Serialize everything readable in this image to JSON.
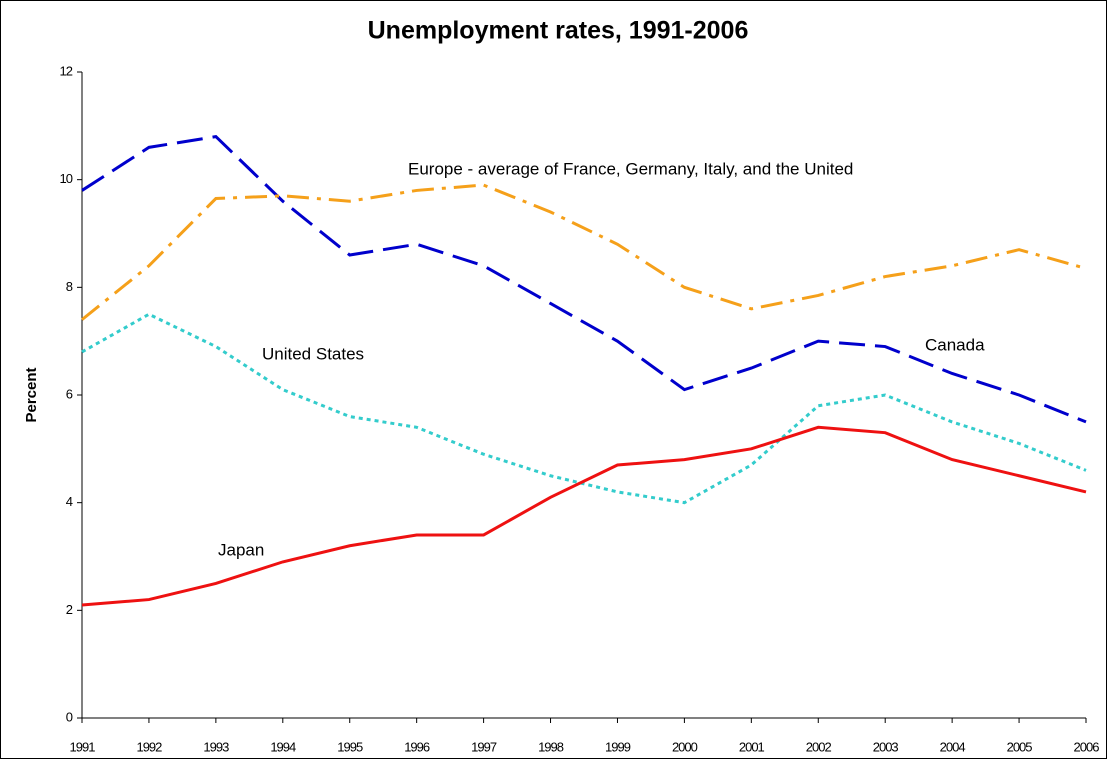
{
  "chart_data": {
    "type": "line",
    "title": "Unemployment rates, 1991-2006",
    "y_label": "Percent",
    "categories": [
      "1991",
      "1992",
      "1993",
      "1994",
      "1995",
      "1996",
      "1997",
      "1998",
      "1999",
      "2000",
      "2001",
      "2002",
      "2003",
      "2004",
      "2005",
      "2006"
    ],
    "series": [
      {
        "name": "Canada",
        "color": "#0000cc",
        "dash": "dashed",
        "values": [
          9.8,
          10.6,
          10.8,
          9.6,
          8.6,
          8.8,
          8.4,
          7.7,
          7.0,
          6.1,
          6.5,
          7.0,
          6.9,
          6.4,
          6.0,
          5.5
        ]
      },
      {
        "name": "Europe - average of France, Germany, Italy, and the United",
        "color": "#f5a01a",
        "dash": "dashdot",
        "values": [
          7.4,
          8.4,
          9.65,
          9.7,
          9.6,
          9.8,
          9.9,
          9.4,
          8.8,
          8.0,
          7.6,
          7.85,
          8.2,
          8.4,
          8.7,
          8.35
        ]
      },
      {
        "name": "United States",
        "color": "#33cccc",
        "dash": "dotted",
        "values": [
          6.8,
          7.5,
          6.9,
          6.1,
          5.6,
          5.4,
          4.9,
          4.5,
          4.2,
          4.0,
          4.7,
          5.8,
          6.0,
          5.5,
          5.1,
          4.6
        ]
      },
      {
        "name": "Japan",
        "color": "#ee1111",
        "dash": "solid",
        "values": [
          2.1,
          2.2,
          2.5,
          2.9,
          3.2,
          3.4,
          3.4,
          4.1,
          4.7,
          4.8,
          5.0,
          5.4,
          5.3,
          4.8,
          4.5,
          4.2
        ]
      }
    ],
    "ylim": [
      0,
      12
    ],
    "yticks": [
      0,
      2,
      4,
      6,
      8,
      10,
      12
    ],
    "grid": false,
    "legend": "none"
  }
}
